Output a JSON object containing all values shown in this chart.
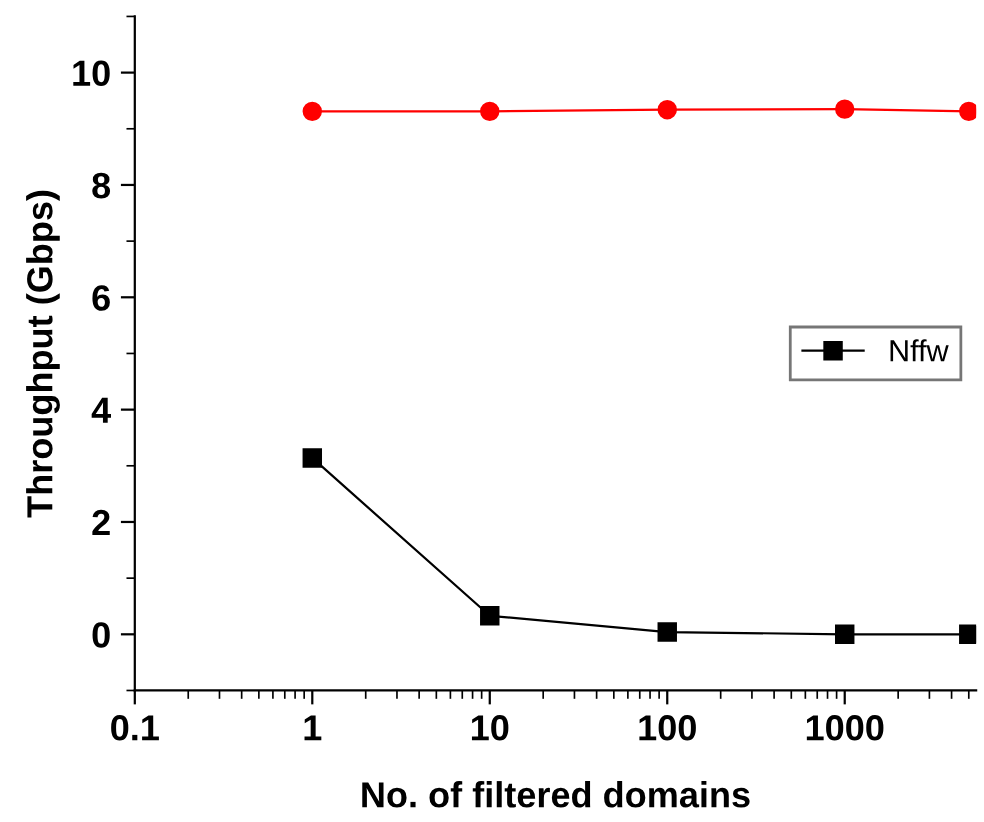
{
  "chart_data": {
    "type": "line",
    "xlabel": "No. of filtered domains",
    "ylabel": "Throughput (Gbps)",
    "x": [
      1,
      10,
      100,
      1000,
      5000
    ],
    "series": [
      {
        "name": "Nffw",
        "color": "#000000",
        "marker": "square",
        "values": [
          3.14,
          0.33,
          0.04,
          0.0,
          0.0
        ]
      },
      {
        "color": "#ff0000",
        "marker": "circle",
        "values": [
          9.31,
          9.31,
          9.34,
          9.35,
          9.31
        ]
      }
    ],
    "log": "x",
    "xlim": [
      0.1,
      5500
    ],
    "xticks": [
      0.1,
      1,
      10,
      100,
      1000
    ],
    "ylim": [
      -1,
      11
    ],
    "yticks": [
      0,
      2,
      4,
      6,
      8,
      10
    ],
    "grid": false,
    "legend": "center right",
    "line_style": "solid"
  }
}
